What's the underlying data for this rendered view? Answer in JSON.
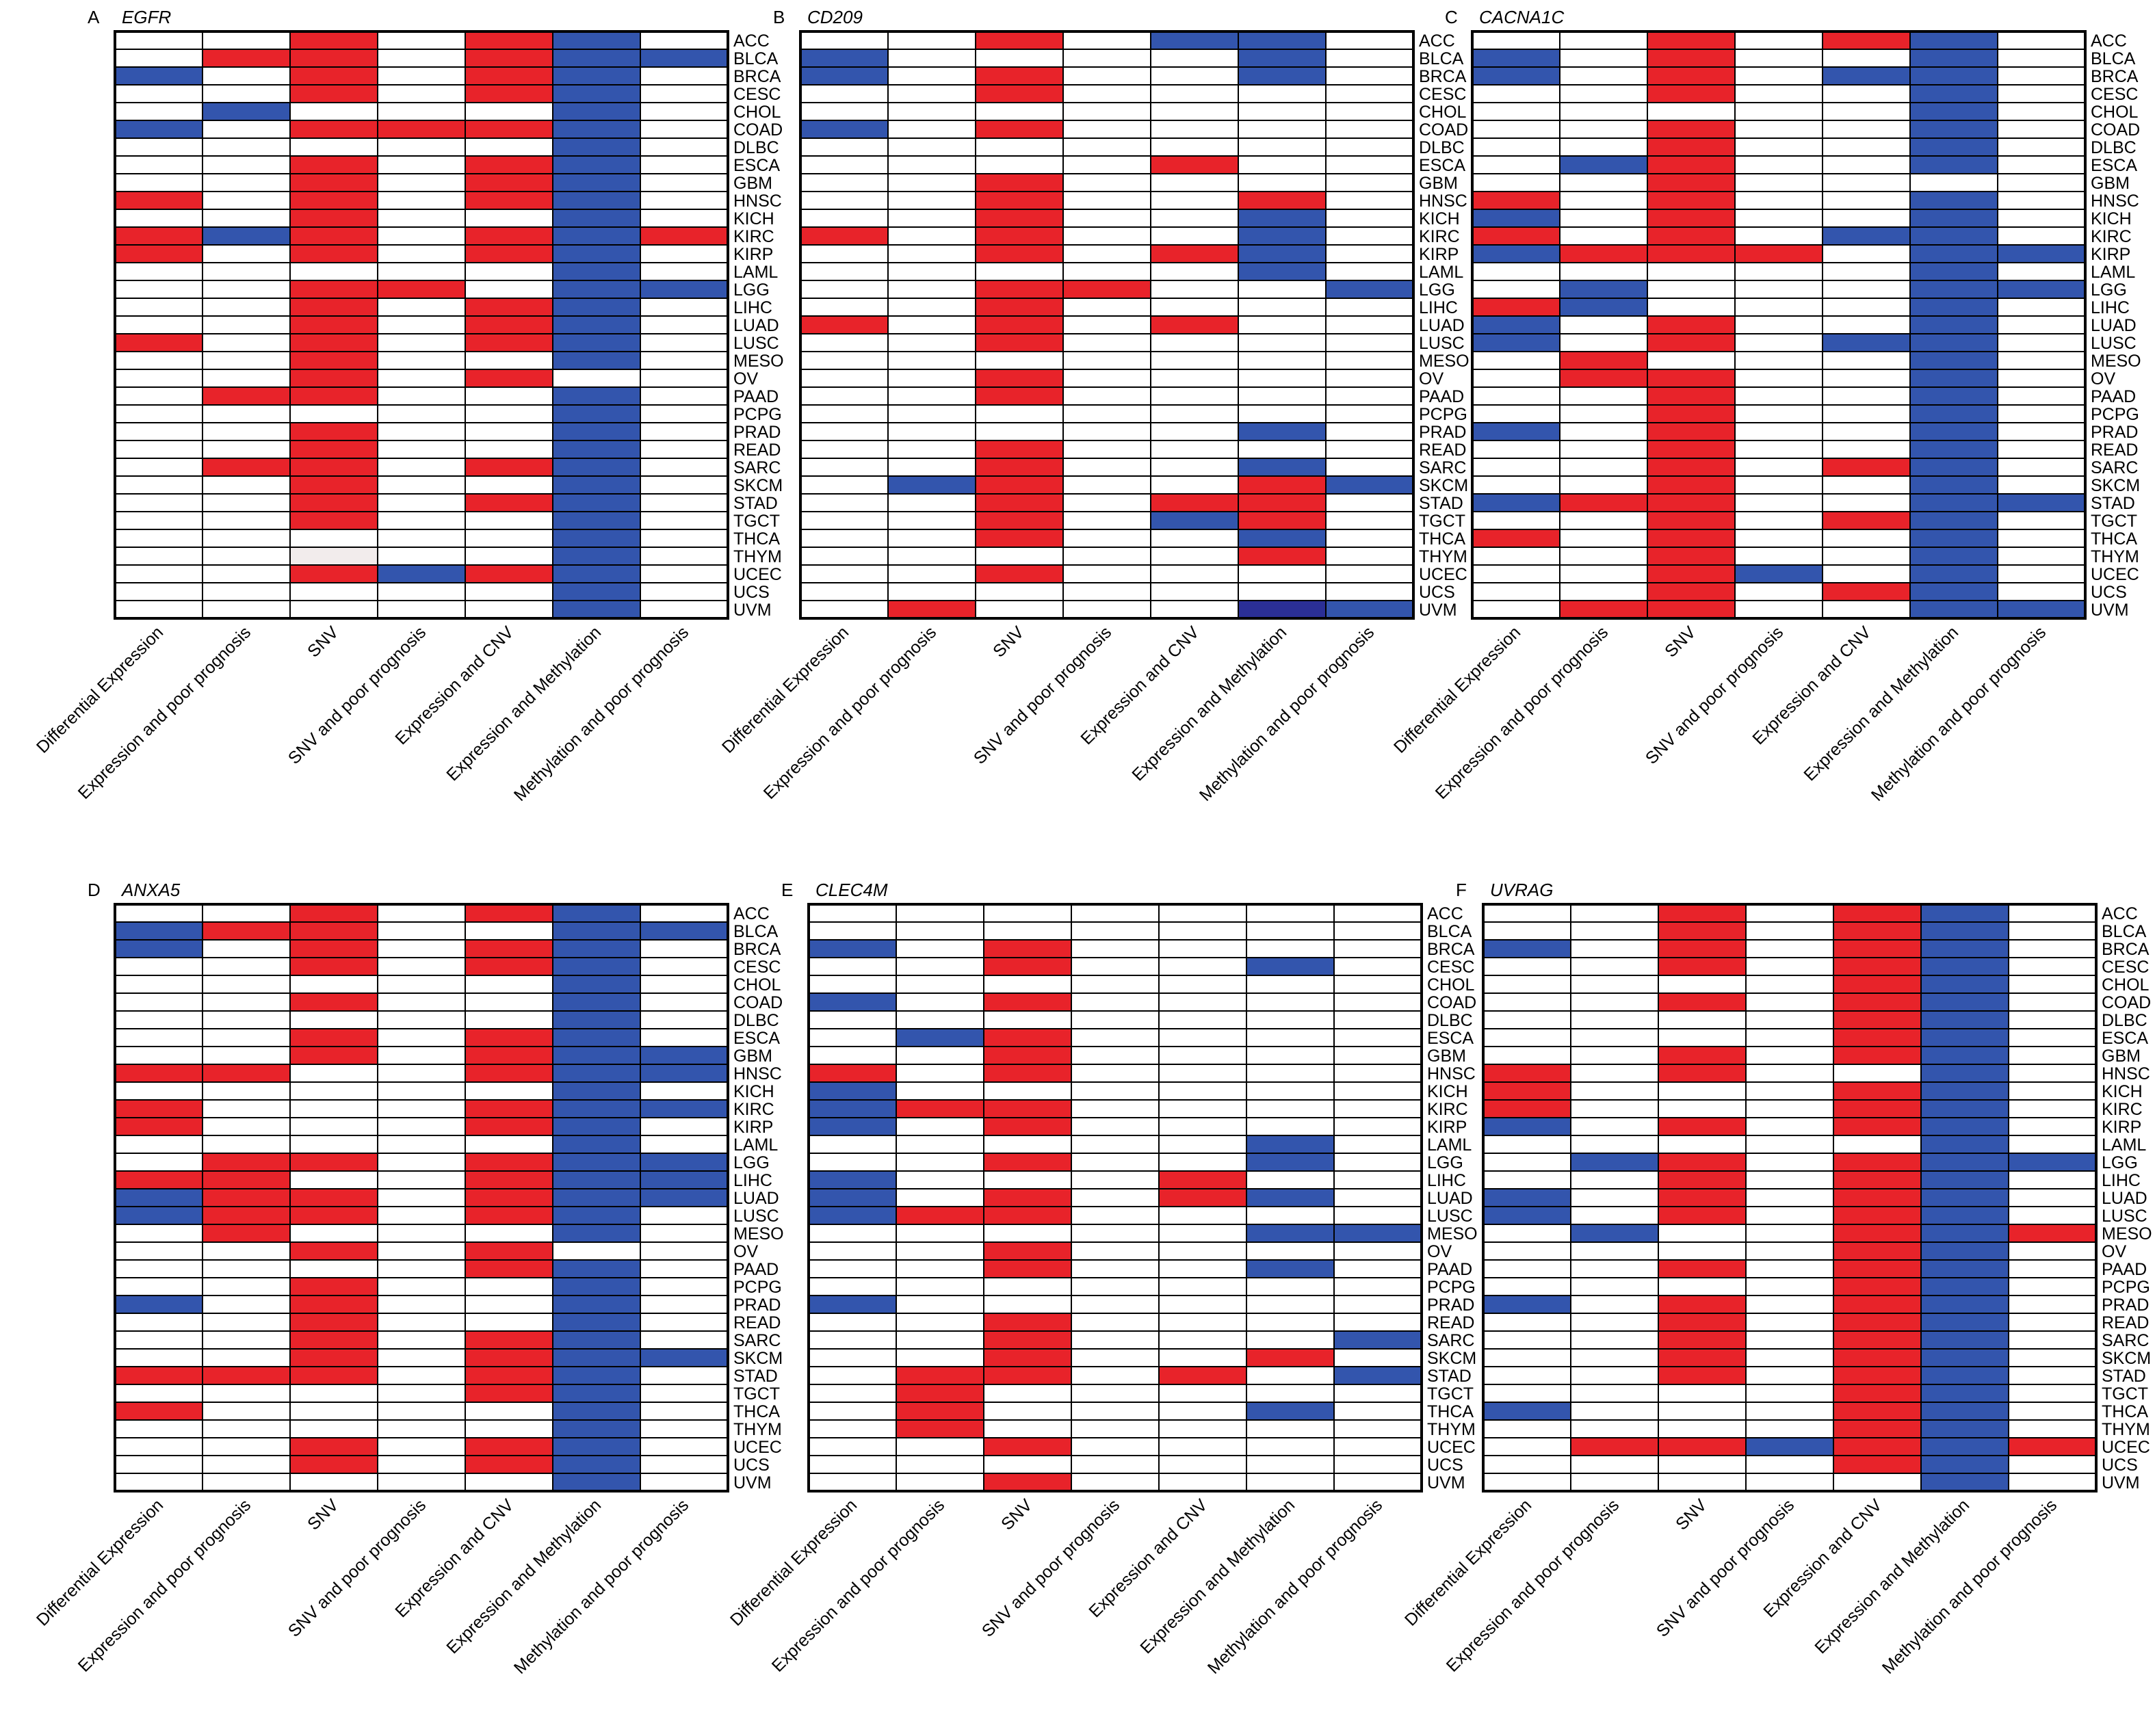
{
  "colors": {
    "red": "#e8232a",
    "blue": "#3355ad",
    "dark_blue": "#2b2f96",
    "grey": "#f2ecec",
    "grid": "#000000"
  },
  "legend": {
    "r": "red cell",
    "b": "blue cell",
    "d": "dark blue cell",
    "g": "light grey cell",
    ".": "empty cell"
  },
  "columns": [
    "Differential Expression",
    "Expression and poor prognosis",
    "SNV",
    "SNV and poor prognosis",
    "Expression and CNV",
    "Expression and Methylation",
    "Methylation and poor prognosis"
  ],
  "rows": [
    "ACC",
    "BLCA",
    "BRCA",
    "CESC",
    "CHOL",
    "COAD",
    "DLBC",
    "ESCA",
    "GBM",
    "HNSC",
    "KICH",
    "KIRC",
    "KIRP",
    "LAML",
    "LGG",
    "LIHC",
    "LUAD",
    "LUSC",
    "MESO",
    "OV",
    "PAAD",
    "PCPG",
    "PRAD",
    "READ",
    "SARC",
    "SKCM",
    "STAD",
    "TGCT",
    "THCA",
    "THYM",
    "UCEC",
    "UCS",
    "UVM"
  ],
  "chart_data": [
    {
      "type": "heatmap",
      "panel": "A",
      "gene": "EGFR",
      "grid": [
        "..r.rb.",
        ".rr.rbb",
        "b.r.rb.",
        "..r.rb.",
        ".b...b.",
        "b.rrrb.",
        ".....b.",
        "..r.rb.",
        "..r.rb.",
        "r.r.rb.",
        "..r..b.",
        "rbr.rbr",
        "r.r.rb.",
        ".....b.",
        "..rr.bb",
        "..r.rb.",
        "..r.rb.",
        "r.r.rb.",
        "..r..b.",
        "..r.r..",
        ".rr..b.",
        ".....b.",
        "..r..b.",
        "..r..b.",
        ".rr.rb.",
        "..r..b.",
        "..r.rb.",
        "..r..b.",
        ".....b.",
        "..g..b.",
        "..rbrb.",
        ".....b.",
        ".....b."
      ]
    },
    {
      "type": "heatmap",
      "panel": "B",
      "gene": "CD209",
      "grid": [
        "..r.bb.",
        "b....b.",
        "b.r..b.",
        "..r....",
        ".......",
        "b.r....",
        ".......",
        "....r..",
        "..r....",
        "..r..r.",
        "..r..b.",
        "r.r..b.",
        "..r.rb.",
        ".....b.",
        "..rr..b",
        "..r....",
        "r.r.r..",
        "..r....",
        ".......",
        "..r....",
        "..r....",
        ".......",
        ".....b.",
        "..r....",
        "..r..b.",
        ".br..rb",
        "..r.rr.",
        "..r.br.",
        "..r..b.",
        ".....r.",
        "..r....",
        ".......",
        ".r...db"
      ]
    },
    {
      "type": "heatmap",
      "panel": "C",
      "gene": "CACNA1C",
      "grid": [
        "..r.rb.",
        "b.r..b.",
        "b.r.bb.",
        "..r..b.",
        ".....b.",
        "..r..b.",
        "..r..b.",
        ".br..b.",
        "..r....",
        "r.r..b.",
        "b.r..b.",
        "r.r.bb.",
        "brrr.bb",
        ".....b.",
        ".b...bb",
        "rb...b.",
        "b.r..b.",
        "b.r.bb.",
        ".r...b.",
        ".rr..b.",
        "..r..b.",
        "..r..b.",
        "b.r..b.",
        "..r..b.",
        "..r.rb.",
        "..r..b.",
        "brr..bb",
        "..r.rb.",
        "r.r..b.",
        "..r..b.",
        "..rb.b.",
        "..r.rb.",
        ".rr..bb"
      ]
    },
    {
      "type": "heatmap",
      "panel": "D",
      "gene": "ANXA5",
      "grid": [
        "..r.rb.",
        "brr..bb",
        "b.r.rb.",
        "..r.rb.",
        ".....b.",
        "..r..b.",
        ".....b.",
        "..r.rb.",
        "..r.rbb",
        "rr..rbb",
        ".....b.",
        "r...rbb",
        "r...rb.",
        ".....b.",
        ".rr.rbb",
        "rr..rbb",
        "brr.rbb",
        "brr.rb.",
        ".r...b.",
        "..r.r..",
        "....rb.",
        "..r..b.",
        "b.r..b.",
        "..r..b.",
        "..r.rb.",
        "..r.rbb",
        "rrr.rb.",
        "....rb.",
        "r....b.",
        ".....b.",
        "..r.rb.",
        "..r.rb.",
        ".....b."
      ]
    },
    {
      "type": "heatmap",
      "panel": "E",
      "gene": "CLEC4M",
      "grid": [
        ".......",
        ".......",
        "b.r....",
        "..r..b.",
        ".......",
        "b.r....",
        ".......",
        ".br....",
        "..r....",
        "r.r....",
        "b......",
        "brr....",
        "b.r....",
        ".....b.",
        "..r..b.",
        "b...r..",
        "b.r.rb.",
        "brr....",
        ".....bb",
        "..r....",
        "..r..b.",
        ".......",
        "b......",
        "..r....",
        "..r...b",
        "..r..r.",
        ".rr.r.b",
        ".r.....",
        ".r...b.",
        ".r.....",
        "..r....",
        ".......",
        "..r...."
      ]
    },
    {
      "type": "heatmap",
      "panel": "F",
      "gene": "UVRAG",
      "grid": [
        "..r.rb.",
        "..r.rb.",
        "b.r.rb.",
        "..r.rb.",
        "....rb.",
        "..r.rb.",
        "....rb.",
        "....rb.",
        "..r.rb.",
        "r.r..b.",
        "r...rb.",
        "r...rb.",
        "b.r.rb.",
        ".....b.",
        ".br.rbb",
        "..r.rb.",
        "b.r.rb.",
        "b.r.rb.",
        ".b..rbr",
        "....rb.",
        "..r.rb.",
        "....rb.",
        "b.r.rb.",
        "..r.rb.",
        "..r.rb.",
        "..r.rb.",
        "..r.rb.",
        "....rb.",
        "b...rb.",
        "....rb.",
        ".rrbrbr",
        "....rb.",
        ".....b."
      ]
    }
  ]
}
